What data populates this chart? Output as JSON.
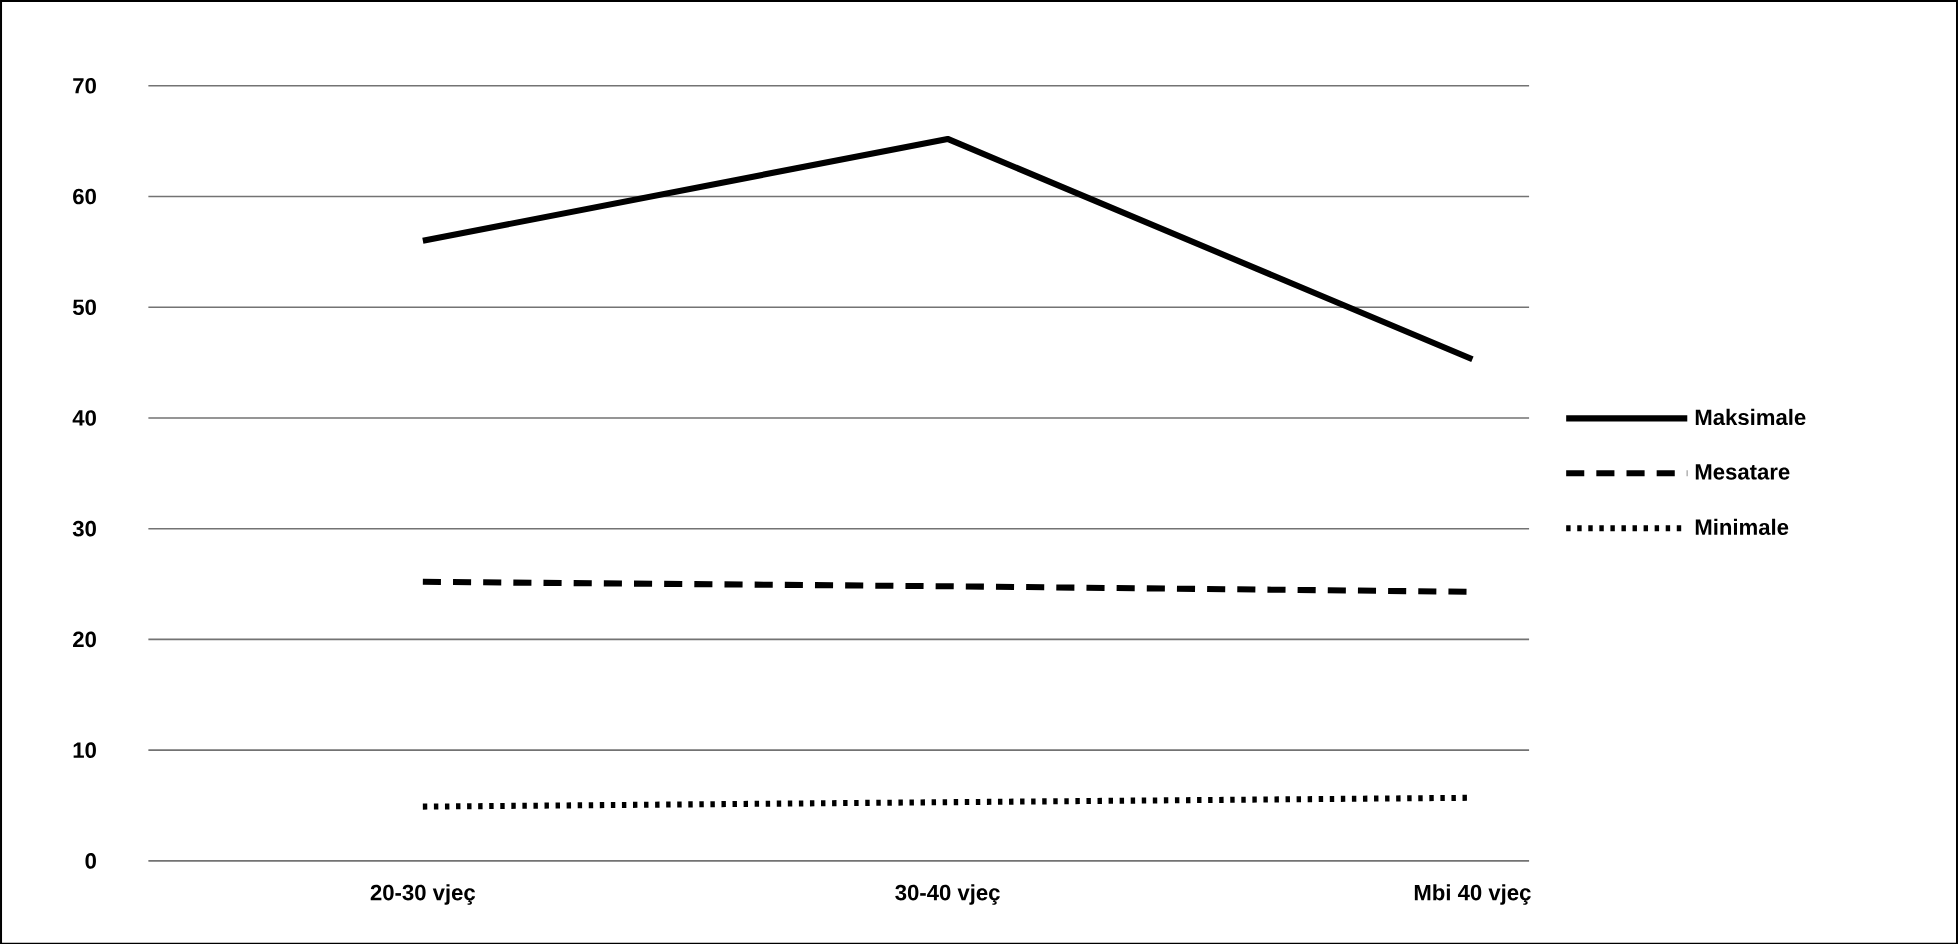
{
  "chart_data": {
    "type": "line",
    "categories": [
      "20-30 vjeç",
      "30-40 vjeç",
      "Mbi 40 vjeç"
    ],
    "series": [
      {
        "name": "Maksimale",
        "color": "#000000",
        "line_style": "solid",
        "values": [
          56.0,
          65.2,
          45.3
        ]
      },
      {
        "name": "Mesatare",
        "color": "#000000",
        "line_style": "dashed",
        "values": [
          25.2,
          24.8,
          24.3
        ]
      },
      {
        "name": "Minimale",
        "color": "#000000",
        "line_style": "dotted",
        "values": [
          4.9,
          5.3,
          5.7
        ]
      }
    ],
    "ylim": [
      0,
      70
    ],
    "yticks": [
      0,
      10,
      20,
      30,
      40,
      50,
      60,
      70
    ],
    "grid": "y",
    "legend": "right",
    "marker": "none"
  }
}
